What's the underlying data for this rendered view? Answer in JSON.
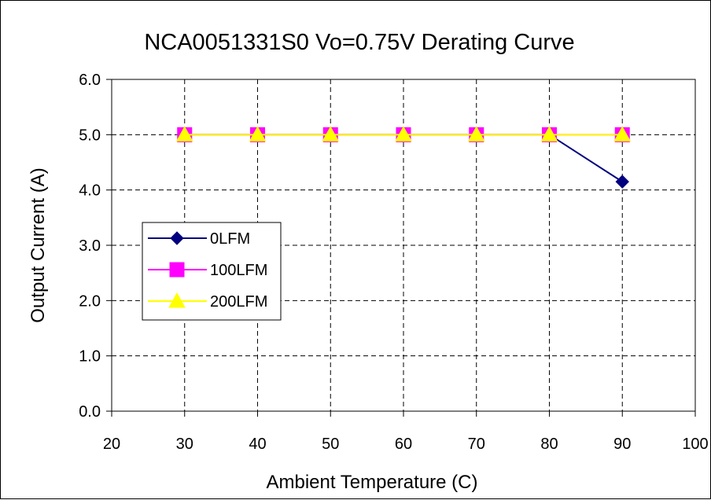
{
  "chart_data": {
    "type": "line",
    "title": "NCA0051331S0 Vo=0.75V Derating Curve",
    "xlabel": "Ambient Temperature (C)",
    "ylabel": "Output Current (A)",
    "xlim": [
      20,
      100
    ],
    "ylim": [
      0,
      6
    ],
    "xticks": [
      "20",
      "30",
      "40",
      "50",
      "60",
      "70",
      "80",
      "90",
      "100"
    ],
    "yticks": [
      "0.0",
      "1.0",
      "2.0",
      "3.0",
      "4.0",
      "5.0",
      "6.0"
    ],
    "grid": true,
    "legend_position": "left",
    "x": [
      30,
      40,
      50,
      60,
      70,
      80,
      90
    ],
    "series": [
      {
        "name": "0LFM",
        "values": [
          5,
          5,
          5,
          5,
          5,
          5,
          4.15
        ],
        "color": "#000080",
        "marker": "diamond"
      },
      {
        "name": "100LFM",
        "values": [
          5,
          5,
          5,
          5,
          5,
          5,
          5
        ],
        "color": "#FF00FF",
        "marker": "square"
      },
      {
        "name": "200LFM",
        "values": [
          5,
          5,
          5,
          5,
          5,
          5,
          5
        ],
        "color": "#FFFF00",
        "marker": "triangle"
      }
    ]
  }
}
